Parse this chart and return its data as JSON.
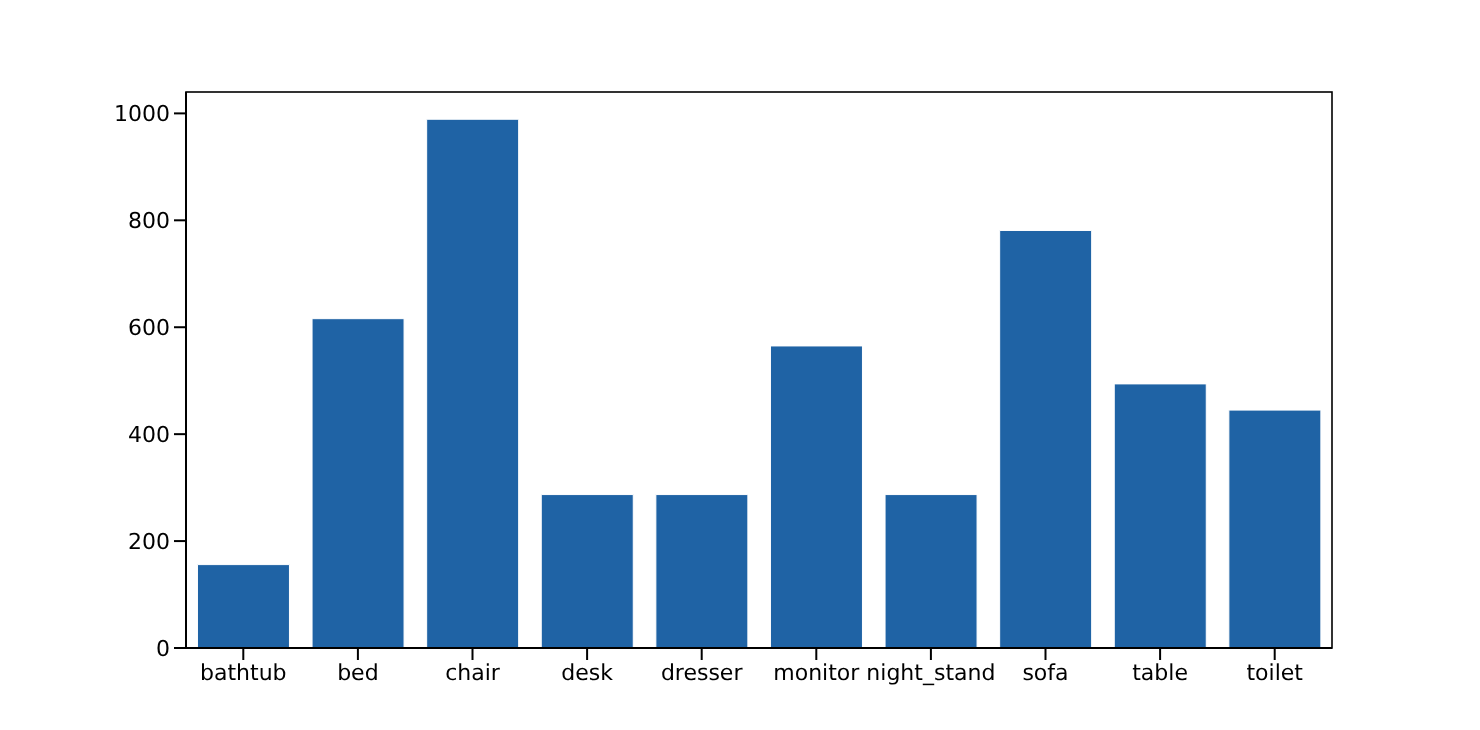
{
  "chart_data": {
    "type": "bar",
    "categories": [
      "bathtub",
      "bed",
      "chair",
      "desk",
      "dresser",
      "monitor",
      "night_stand",
      "sofa",
      "table",
      "toilet"
    ],
    "values": [
      156,
      616,
      989,
      287,
      287,
      565,
      287,
      781,
      494,
      445
    ],
    "color": "#1f63a5",
    "ylim": [
      0,
      1040
    ],
    "yticks": [
      0,
      200,
      400,
      600,
      800,
      1000
    ],
    "grid": false
  }
}
